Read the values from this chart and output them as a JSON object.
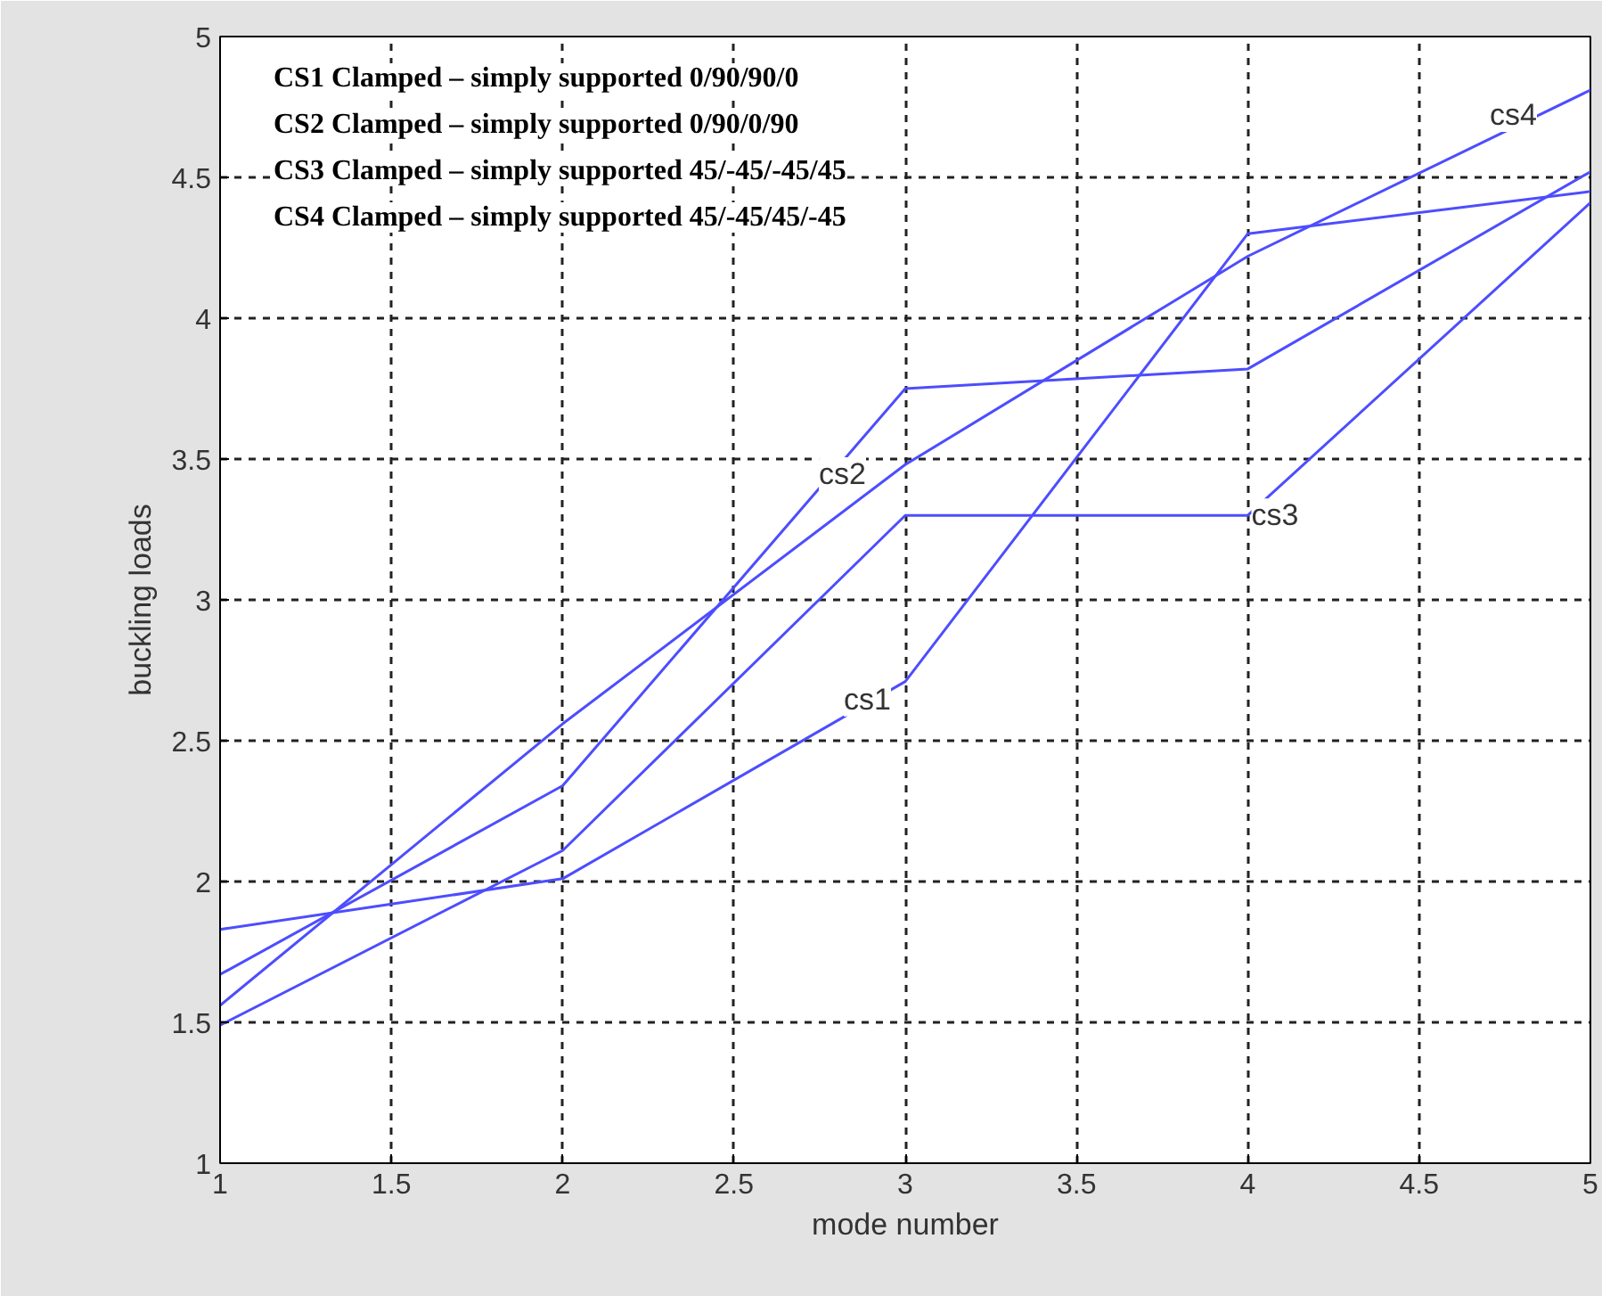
{
  "chart_data": {
    "type": "line",
    "xlabel": "mode number",
    "ylabel": "buckling loads",
    "x": [
      1,
      2,
      3,
      4,
      5
    ],
    "series": [
      {
        "color": "#4d4dff",
        "values": [
          1.83,
          2.01,
          2.71,
          4.3,
          4.45
        ]
      },
      {
        "color": "#4d4dff",
        "values": [
          1.67,
          2.34,
          3.75,
          3.82,
          4.52
        ]
      },
      {
        "color": "#4d4dff",
        "values": [
          1.49,
          2.11,
          3.3,
          3.3,
          4.41
        ]
      },
      {
        "color": "#4d4dff",
        "values": [
          1.56,
          2.56,
          3.48,
          4.22,
          4.81
        ]
      }
    ],
    "xlim": [
      1,
      5
    ],
    "ylim": [
      1,
      5
    ],
    "xticks": [
      1,
      1.5,
      2,
      2.5,
      3,
      3.5,
      4,
      4.5,
      5
    ],
    "yticks": [
      1,
      1.5,
      2,
      2.5,
      3,
      3.5,
      4,
      4.5,
      5
    ],
    "grid": true,
    "line_style": "solid",
    "marker": "none",
    "annotations": [
      "CS1 Clamped – simply supported 0/90/90/0",
      "CS2 Clamped – simply supported 0/90/0/90",
      "CS3 Clamped – simply supported 45/-45/-45/45",
      "CS4 Clamped – simply supported 45/-45/45/-45",
      {
        "text": "cs1",
        "x": 3,
        "y": 2.71
      },
      {
        "text": "cs2",
        "x": 3,
        "y": 3.75
      },
      {
        "text": "cs3",
        "x": 4,
        "y": 3.3
      },
      {
        "text": "cs4",
        "x": 5,
        "y": 4.81
      }
    ]
  }
}
